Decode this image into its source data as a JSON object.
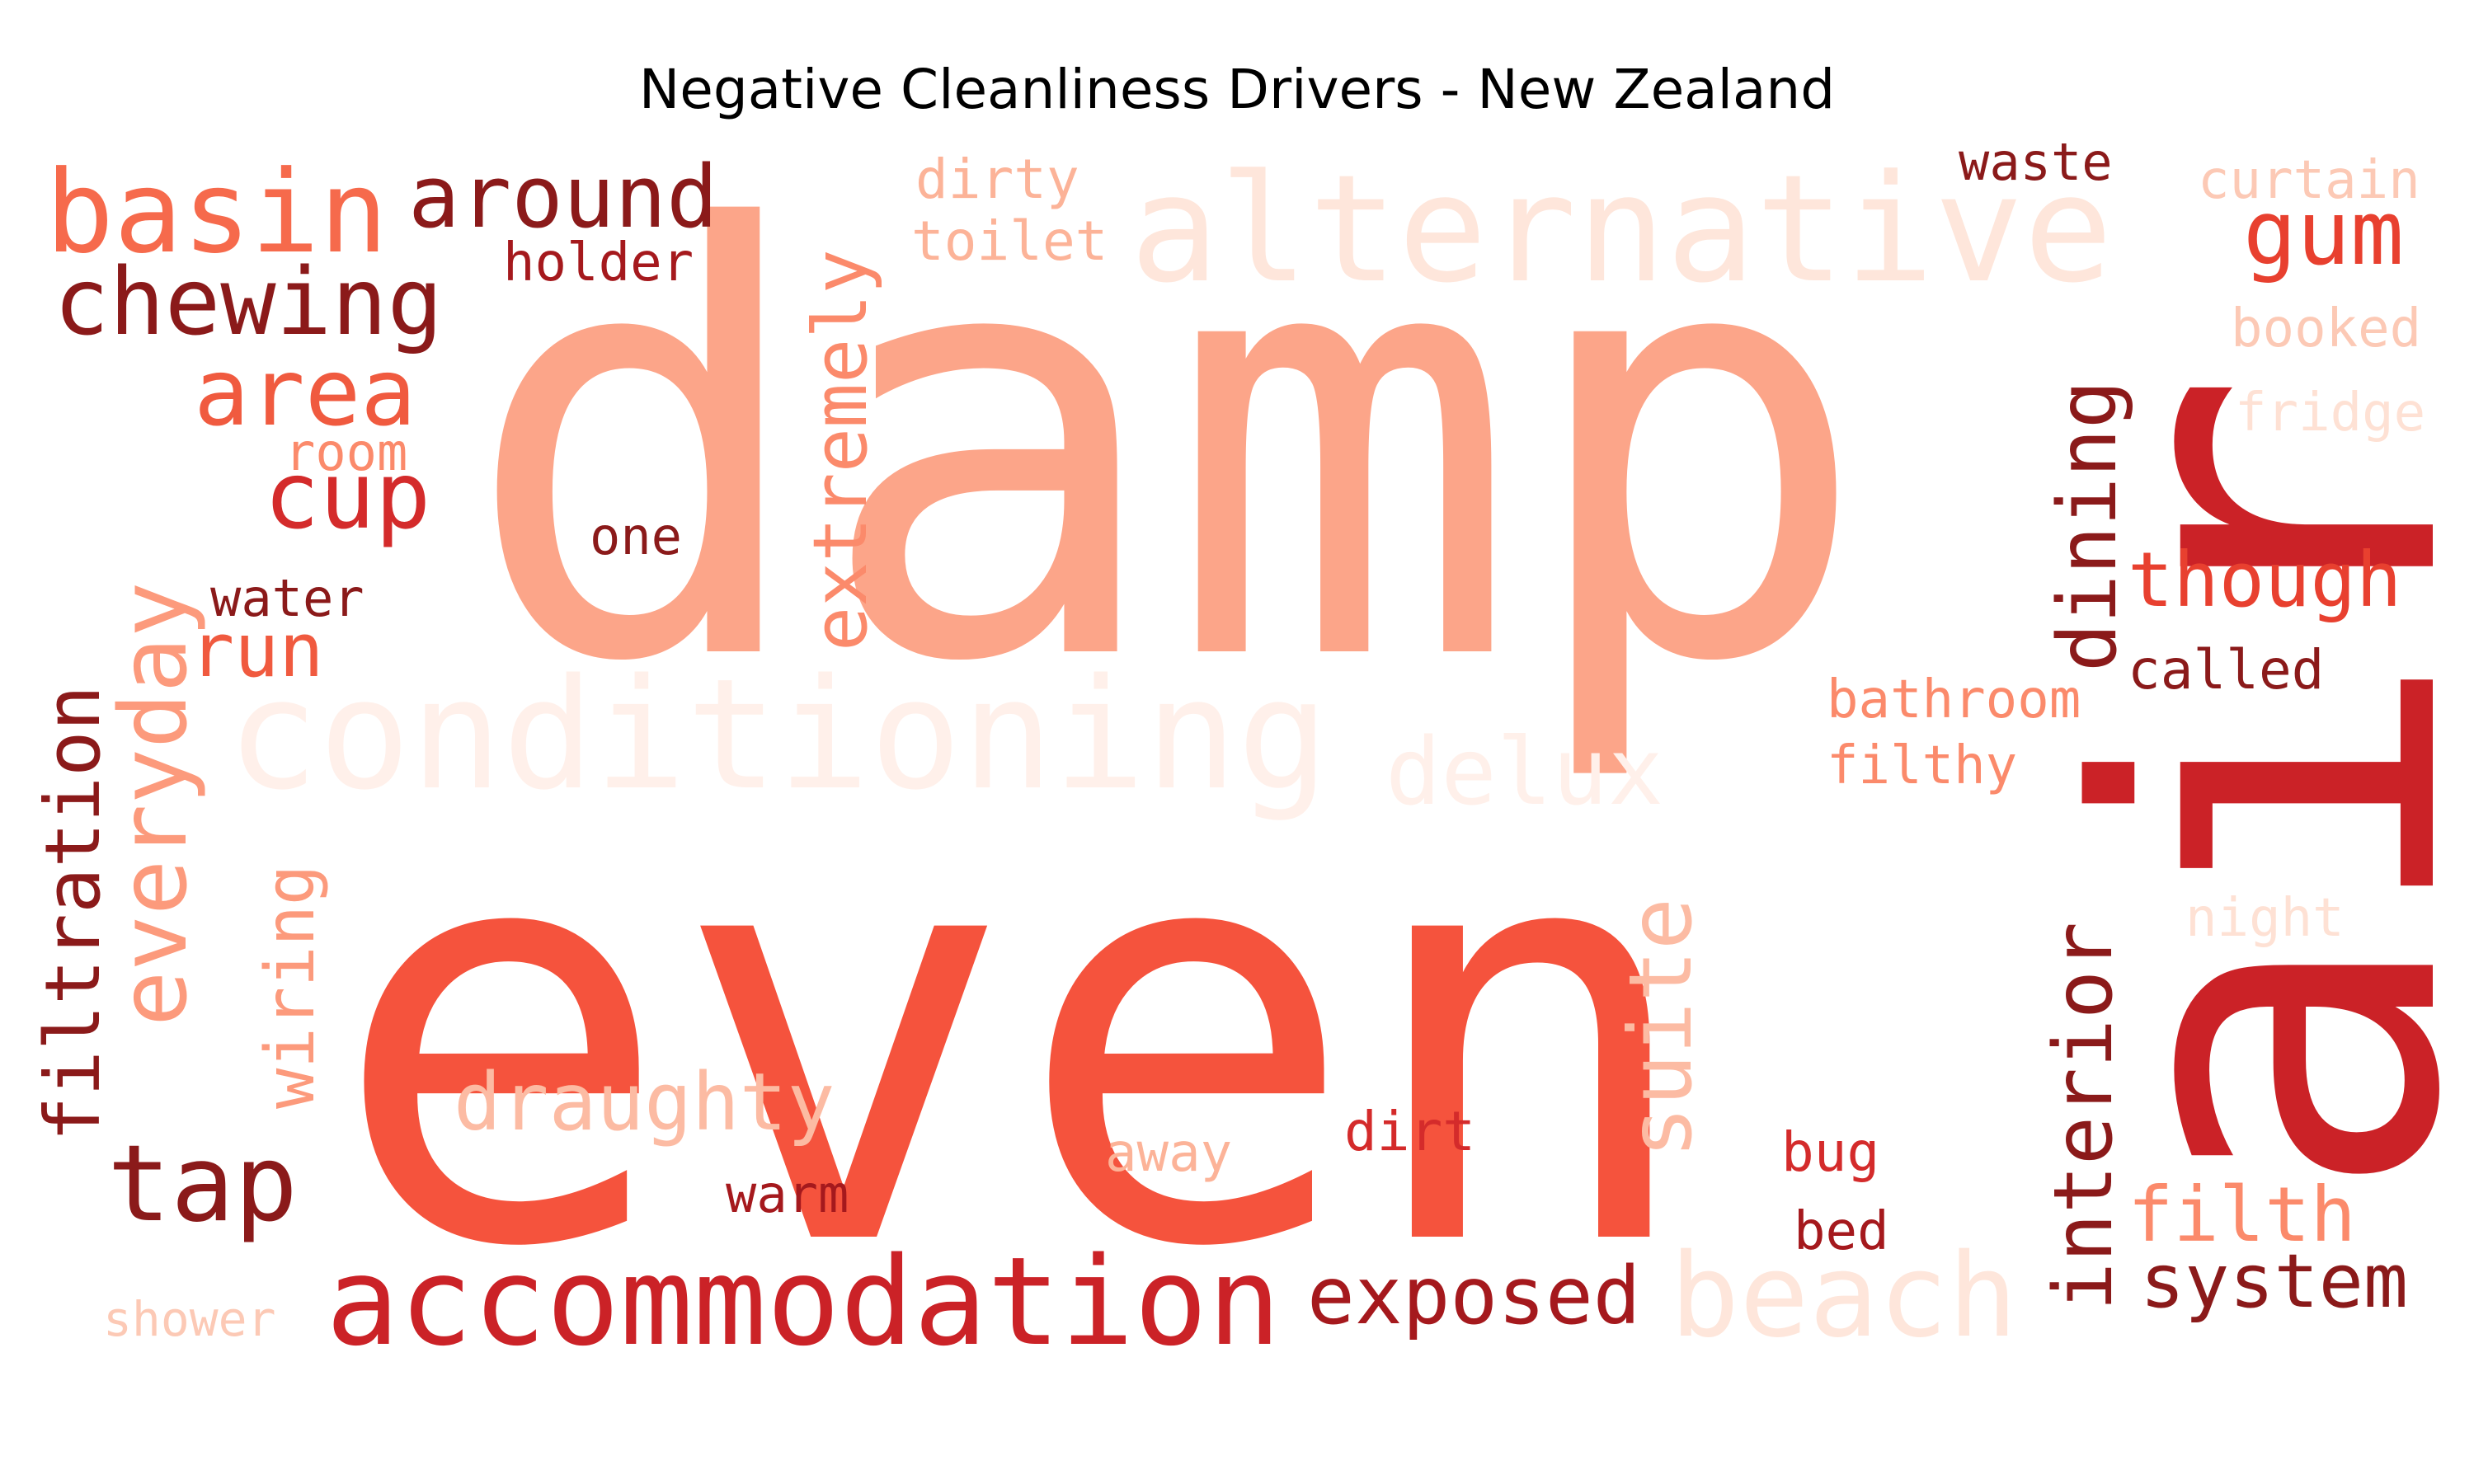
{
  "title": "Negative Cleanliness Drivers - New Zealand",
  "palette": {
    "darkest": "#8b1a1a",
    "dark": "#a5191d",
    "red": "#cb2227",
    "orange_red": "#f05a3f",
    "salmon": "#fb8a6b",
    "light_salmon": "#fca589",
    "pale": "#fcbba3",
    "very_pale": "#fee1d4",
    "faint": "#fff0ea"
  },
  "words": [
    {
      "id": "damp",
      "text": "damp",
      "color": "#fca589"
    },
    {
      "id": "even",
      "text": "even",
      "color": "#f5533d"
    },
    {
      "id": "air",
      "text": "air",
      "color": "#cb2227"
    },
    {
      "id": "alternative",
      "text": "alternative",
      "color": "#fee6db"
    },
    {
      "id": "conditioning",
      "text": "conditioning",
      "color": "#fff0ea"
    },
    {
      "id": "accommodation",
      "text": "accommodation",
      "color": "#cb2227"
    },
    {
      "id": "basin",
      "text": "basin",
      "color": "#f66a4c"
    },
    {
      "id": "chewing",
      "text": "chewing",
      "color": "#8b1a1a"
    },
    {
      "id": "around",
      "text": "around",
      "color": "#8b1a1a"
    },
    {
      "id": "area",
      "text": "area",
      "color": "#f05a3f"
    },
    {
      "id": "cup",
      "text": "cup",
      "color": "#d42b2b"
    },
    {
      "id": "room",
      "text": "room",
      "color": "#fb8a6b"
    },
    {
      "id": "holder",
      "text": "holder",
      "color": "#a5191d"
    },
    {
      "id": "dirty",
      "text": "dirty",
      "color": "#fcb398"
    },
    {
      "id": "toilet",
      "text": "toilet",
      "color": "#fcb398"
    },
    {
      "id": "extremely",
      "text": "extremely",
      "color": "#fb8a6b"
    },
    {
      "id": "one",
      "text": "one",
      "color": "#8b1a1a"
    },
    {
      "id": "water",
      "text": "water",
      "color": "#8b1a1a"
    },
    {
      "id": "run",
      "text": "run",
      "color": "#f05a3f"
    },
    {
      "id": "everyday",
      "text": "everyday",
      "color": "#fc9a7c"
    },
    {
      "id": "filtration",
      "text": "filtration",
      "color": "#8b1a1a"
    },
    {
      "id": "wiring",
      "text": "wiring",
      "color": "#fc9a7c"
    },
    {
      "id": "tap",
      "text": "tap",
      "color": "#8b1a1a"
    },
    {
      "id": "draughty",
      "text": "draughty",
      "color": "#fcbba3"
    },
    {
      "id": "warm",
      "text": "warm",
      "color": "#a5191d"
    },
    {
      "id": "away",
      "text": "away",
      "color": "#fcb398"
    },
    {
      "id": "dirt",
      "text": "dirt",
      "color": "#d42b2b"
    },
    {
      "id": "delux",
      "text": "delux",
      "color": "#fff0ea"
    },
    {
      "id": "suite",
      "text": "suite",
      "color": "#fcbba3"
    },
    {
      "id": "exposed",
      "text": "exposed",
      "color": "#a5191d"
    },
    {
      "id": "beach",
      "text": "beach",
      "color": "#fee6db"
    },
    {
      "id": "shower",
      "text": "shower",
      "color": "#fcc9b5"
    },
    {
      "id": "waste",
      "text": "waste",
      "color": "#8b1a1a"
    },
    {
      "id": "curtain",
      "text": "curtain",
      "color": "#fcc9b5"
    },
    {
      "id": "gum",
      "text": "gum",
      "color": "#e8402f"
    },
    {
      "id": "booked",
      "text": "booked",
      "color": "#fcc9b5"
    },
    {
      "id": "fridge",
      "text": "fridge",
      "color": "#fee1d4"
    },
    {
      "id": "dining",
      "text": "dining",
      "color": "#8b1a1a"
    },
    {
      "id": "though",
      "text": "though",
      "color": "#e8402f"
    },
    {
      "id": "called",
      "text": "called",
      "color": "#8b1a1a"
    },
    {
      "id": "bathroom",
      "text": "bathroom",
      "color": "#fb8a6b"
    },
    {
      "id": "filthy",
      "text": "filthy",
      "color": "#fb8a6b"
    },
    {
      "id": "night",
      "text": "night",
      "color": "#fee1d4"
    },
    {
      "id": "interior",
      "text": "interior",
      "color": "#8b1a1a"
    },
    {
      "id": "bug",
      "text": "bug",
      "color": "#d42b2b"
    },
    {
      "id": "bed",
      "text": "bed",
      "color": "#a5191d"
    },
    {
      "id": "filth",
      "text": "filth",
      "color": "#fb8a6b"
    },
    {
      "id": "system",
      "text": "system",
      "color": "#8b1a1a"
    }
  ]
}
